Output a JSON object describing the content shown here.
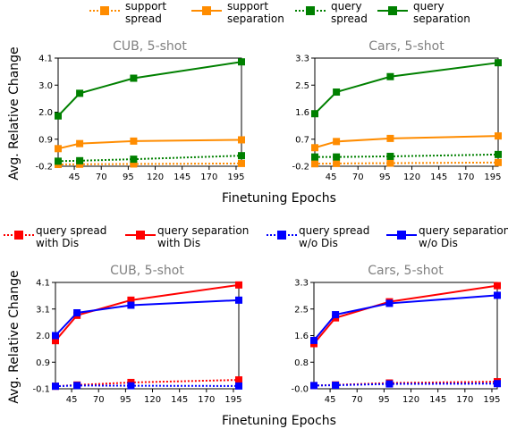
{
  "legend_top": [
    {
      "line1": "support",
      "line2": "spread",
      "color": "#ff8c00",
      "dash": true
    },
    {
      "line1": "support",
      "line2": "separation",
      "color": "#ff8c00",
      "dash": false
    },
    {
      "line1": "query",
      "line2": "spread",
      "color": "#008000",
      "dash": true
    },
    {
      "line1": "query",
      "line2": "separation",
      "color": "#008000",
      "dash": false
    }
  ],
  "legend_bottom": [
    {
      "line1": "query spread",
      "line2": "with Dis",
      "color": "#ff0000",
      "dash": true
    },
    {
      "line1": "query separation",
      "line2": "with Dis",
      "color": "#ff0000",
      "dash": false
    },
    {
      "line1": "query spread",
      "line2": "w/o Dis",
      "color": "#0000ff",
      "dash": true
    },
    {
      "line1": "query separation",
      "line2": "w/o Dis",
      "color": "#0000ff",
      "dash": false
    }
  ],
  "ylabel": "Avg. Relative Change",
  "xlabel": "Finetuning Epochs",
  "chart_data": [
    {
      "type": "line",
      "title": "CUB, 5-shot",
      "x": [
        30,
        50,
        100,
        200
      ],
      "xticks": [
        45,
        70,
        95,
        120,
        145,
        170,
        195
      ],
      "xlim": [
        30,
        200
      ],
      "ylim": [
        -0.2,
        4.1
      ],
      "yticks": [
        "-0.2",
        "0.9",
        "2.0",
        "3.0",
        "4.1"
      ],
      "series": [
        {
          "name": "support spread",
          "values": [
            -0.13,
            -0.12,
            -0.11,
            -0.09
          ],
          "color": "#ff8c00",
          "dash": true
        },
        {
          "name": "support separation",
          "values": [
            0.5,
            0.7,
            0.8,
            0.85
          ],
          "color": "#ff8c00",
          "dash": false
        },
        {
          "name": "query spread",
          "values": [
            0.0,
            0.02,
            0.08,
            0.22
          ],
          "color": "#008000",
          "dash": true
        },
        {
          "name": "query separation",
          "values": [
            1.8,
            2.7,
            3.3,
            3.95
          ],
          "color": "#008000",
          "dash": false
        }
      ]
    },
    {
      "type": "line",
      "title": "Cars, 5-shot",
      "x": [
        30,
        50,
        100,
        200
      ],
      "xticks": [
        45,
        70,
        95,
        120,
        145,
        170,
        195
      ],
      "xlim": [
        30,
        200
      ],
      "ylim": [
        -0.2,
        3.3
      ],
      "yticks": [
        "-0.2",
        "0.7",
        "1.6",
        "2.5",
        "3.3"
      ],
      "series": [
        {
          "name": "support spread",
          "values": [
            -0.12,
            -0.11,
            -0.1,
            -0.08
          ],
          "color": "#ff8c00",
          "dash": true
        },
        {
          "name": "support separation",
          "values": [
            0.4,
            0.6,
            0.7,
            0.78
          ],
          "color": "#ff8c00",
          "dash": false
        },
        {
          "name": "query spread",
          "values": [
            0.1,
            0.1,
            0.12,
            0.18
          ],
          "color": "#008000",
          "dash": true
        },
        {
          "name": "query separation",
          "values": [
            1.5,
            2.2,
            2.7,
            3.15
          ],
          "color": "#008000",
          "dash": false
        }
      ]
    },
    {
      "type": "line",
      "title": "CUB, 5-shot",
      "x": [
        30,
        50,
        100,
        200
      ],
      "xticks": [
        45,
        70,
        95,
        120,
        145,
        170,
        195
      ],
      "xlim": [
        30,
        200
      ],
      "ylim": [
        -0.1,
        4.1
      ],
      "yticks": [
        "-0.1",
        "0.9",
        "2.0",
        "3.1",
        "4.1"
      ],
      "series": [
        {
          "name": "query spread with Dis",
          "values": [
            0.0,
            0.05,
            0.15,
            0.25
          ],
          "color": "#ff0000",
          "dash": true
        },
        {
          "name": "query separation with Dis",
          "values": [
            1.8,
            2.8,
            3.4,
            4.0
          ],
          "color": "#ff0000",
          "dash": false
        },
        {
          "name": "query spread w/o Dis",
          "values": [
            0.0,
            0.03,
            0.02,
            0.01
          ],
          "color": "#0000ff",
          "dash": true
        },
        {
          "name": "query separation w/o Dis",
          "values": [
            2.0,
            2.9,
            3.2,
            3.4
          ],
          "color": "#0000ff",
          "dash": false
        }
      ]
    },
    {
      "type": "line",
      "title": "Cars, 5-shot",
      "x": [
        30,
        50,
        100,
        200
      ],
      "xticks": [
        45,
        70,
        95,
        120,
        145,
        170,
        195
      ],
      "xlim": [
        30,
        200
      ],
      "ylim": [
        0.0,
        3.3
      ],
      "yticks": [
        "-0.0",
        "0.8",
        "1.6",
        "2.5",
        "3.3"
      ],
      "series": [
        {
          "name": "query spread with Dis",
          "values": [
            0.1,
            0.12,
            0.18,
            0.22
          ],
          "color": "#ff0000",
          "dash": true
        },
        {
          "name": "query separation with Dis",
          "values": [
            1.4,
            2.2,
            2.7,
            3.2
          ],
          "color": "#ff0000",
          "dash": false
        },
        {
          "name": "query spread w/o Dis",
          "values": [
            0.1,
            0.11,
            0.15,
            0.16
          ],
          "color": "#0000ff",
          "dash": true
        },
        {
          "name": "query separation w/o Dis",
          "values": [
            1.5,
            2.3,
            2.65,
            2.9
          ],
          "color": "#0000ff",
          "dash": false
        }
      ]
    }
  ]
}
